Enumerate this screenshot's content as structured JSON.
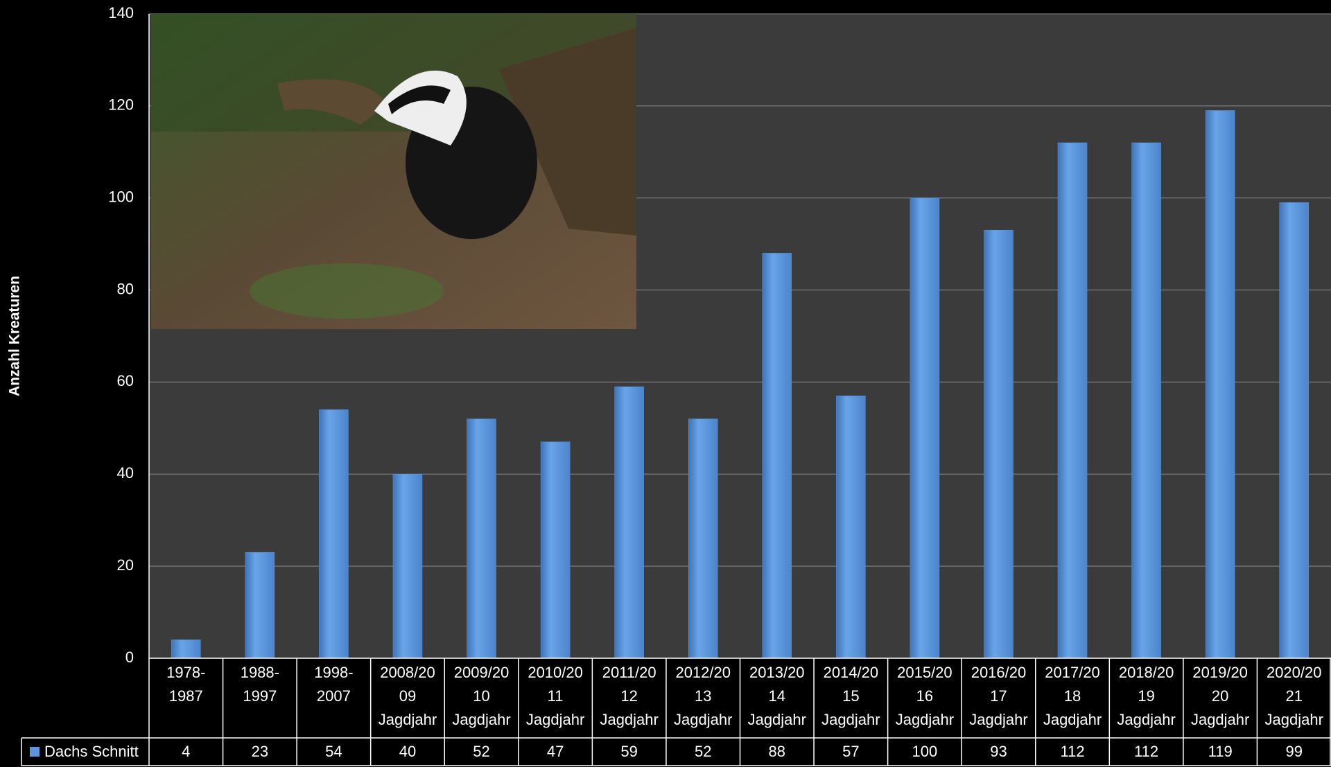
{
  "chart_data": {
    "type": "bar",
    "y_label": "Anzahl Kreaturen",
    "categories": [
      [
        "1978-",
        "1987"
      ],
      [
        "1988-",
        "1997"
      ],
      [
        "1998-",
        "2007"
      ],
      [
        "2008/20",
        "09",
        "Jagdjahr"
      ],
      [
        "2009/20",
        "10",
        "Jagdjahr"
      ],
      [
        "2010/20",
        "11",
        "Jagdjahr"
      ],
      [
        "2011/20",
        "12",
        "Jagdjahr"
      ],
      [
        "2012/20",
        "13",
        "Jagdjahr"
      ],
      [
        "2013/20",
        "14",
        "Jagdjahr"
      ],
      [
        "2014/20",
        "15",
        "Jagdjahr"
      ],
      [
        "2015/20",
        "16",
        "Jagdjahr"
      ],
      [
        "2016/20",
        "17",
        "Jagdjahr"
      ],
      [
        "2017/20",
        "18",
        "Jagdjahr"
      ],
      [
        "2018/20",
        "19",
        "Jagdjahr"
      ],
      [
        "2019/20",
        "20",
        "Jagdjahr"
      ],
      [
        "2020/20",
        "21",
        "Jagdjahr"
      ]
    ],
    "series": [
      {
        "name": "Dachs Schnitt",
        "color": "#5b96dc",
        "values": [
          4,
          23,
          54,
          40,
          52,
          47,
          59,
          52,
          88,
          57,
          100,
          93,
          112,
          112,
          119,
          99
        ]
      }
    ],
    "ylim": [
      0,
      140
    ],
    "yticks": [
      0,
      20,
      40,
      60,
      80,
      100,
      120,
      140
    ],
    "grid": true
  }
}
